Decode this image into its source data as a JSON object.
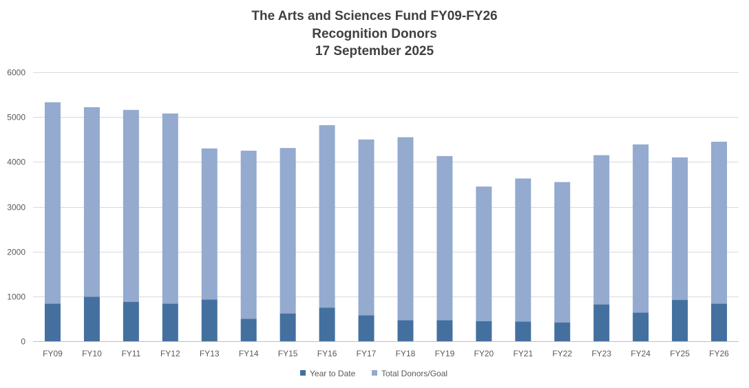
{
  "chart_data": {
    "type": "bar",
    "stacked": true,
    "title_lines": [
      "The Arts and Sciences Fund FY09-FY26",
      "Recognition Donors",
      "17 September 2025"
    ],
    "categories": [
      "FY09",
      "FY10",
      "FY11",
      "FY12",
      "FY13",
      "FY14",
      "FY15",
      "FY16",
      "FY17",
      "FY18",
      "FY19",
      "FY20",
      "FY21",
      "FY22",
      "FY23",
      "FY24",
      "FY25",
      "FY26"
    ],
    "series": [
      {
        "name": "Year to Date",
        "color": "#44709F",
        "values": [
          840,
          990,
          880,
          840,
          930,
          500,
          620,
          750,
          580,
          470,
          470,
          450,
          440,
          420,
          820,
          640,
          920,
          840
        ]
      },
      {
        "name": "Total Donors/Goal",
        "color": "#94AACF",
        "values": [
          4490,
          4230,
          4280,
          4240,
          3370,
          3750,
          3690,
          4070,
          3920,
          4080,
          3660,
          3000,
          3190,
          3130,
          3330,
          3750,
          3180,
          3610
        ]
      }
    ],
    "totals": [
      5330,
      5220,
      5160,
      5080,
      4300,
      4250,
      4310,
      4820,
      4500,
      4550,
      4130,
      3450,
      3630,
      3550,
      4150,
      4390,
      4100,
      4450
    ],
    "ylim": [
      0,
      6000
    ],
    "yticks": [
      "0",
      "1000",
      "2000",
      "3000",
      "4000",
      "5000",
      "6000"
    ],
    "grid": true,
    "legend_position": "bottom"
  }
}
